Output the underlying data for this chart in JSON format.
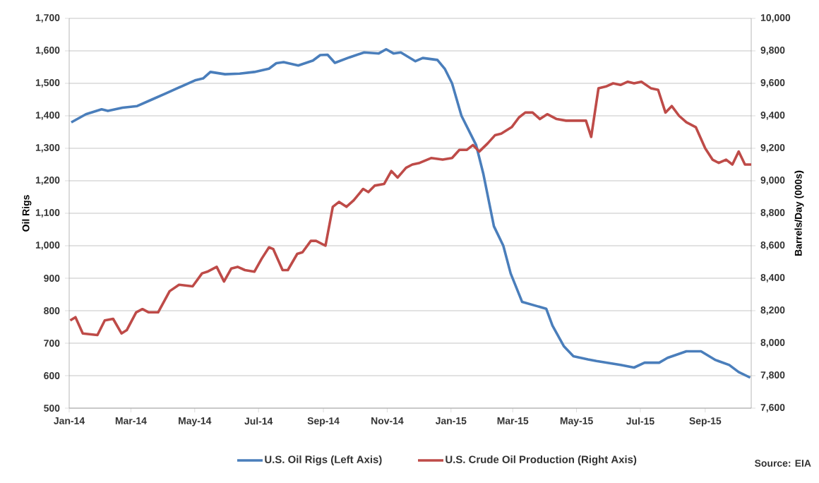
{
  "chart_data": {
    "type": "line",
    "ylabel": "Oil Rigs",
    "y2label": "Barrels/Day (000s)",
    "grid": "y",
    "legend": "bottom",
    "xlim": [
      "2014-01-01",
      "2015-10-15"
    ],
    "xticks": [
      {
        "value": "2014-01-01",
        "label": "Jan-14"
      },
      {
        "value": "2014-03-01",
        "label": "Mar-14"
      },
      {
        "value": "2014-05-01",
        "label": "May-14"
      },
      {
        "value": "2014-07-01",
        "label": "Jul-14"
      },
      {
        "value": "2014-09-01",
        "label": "Sep-14"
      },
      {
        "value": "2014-11-01",
        "label": "Nov-14"
      },
      {
        "value": "2015-01-01",
        "label": "Jan-15"
      },
      {
        "value": "2015-03-01",
        "label": "Mar-15"
      },
      {
        "value": "2015-05-01",
        "label": "May-15"
      },
      {
        "value": "2015-07-01",
        "label": "Jul-15"
      },
      {
        "value": "2015-09-01",
        "label": "Sep-15"
      }
    ],
    "ylim": [
      500,
      1700
    ],
    "yticks": [
      500,
      600,
      700,
      800,
      900,
      {
        "value": 1000,
        "label": "1,000"
      },
      {
        "value": 1100,
        "label": "1,100"
      },
      {
        "value": 1200,
        "label": "1,200"
      },
      {
        "value": 1300,
        "label": "1,300"
      },
      {
        "value": 1400,
        "label": "1,400"
      },
      {
        "value": 1500,
        "label": "1,500"
      },
      {
        "value": 1600,
        "label": "1,600"
      },
      {
        "value": 1700,
        "label": "1,700"
      }
    ],
    "y2lim": [
      7600,
      10000
    ],
    "y2ticks": [
      {
        "value": 7600,
        "label": "7,600"
      },
      {
        "value": 7800,
        "label": "7,800"
      },
      {
        "value": 8000,
        "label": "8,000"
      },
      {
        "value": 8200,
        "label": "8,200"
      },
      {
        "value": 8400,
        "label": "8,400"
      },
      {
        "value": 8600,
        "label": "8,600"
      },
      {
        "value": 8800,
        "label": "8,800"
      },
      {
        "value": 9000,
        "label": "9,000"
      },
      {
        "value": 9200,
        "label": "9,200"
      },
      {
        "value": 9400,
        "label": "9,400"
      },
      {
        "value": 9600,
        "label": "9,600"
      },
      {
        "value": 9800,
        "label": "9,800"
      },
      {
        "value": 10000,
        "label": "10,000"
      }
    ],
    "series": [
      {
        "name": "U.S. Oil Rigs (Left Axis)",
        "color": "#4a7ebb",
        "x": [
          "2014-01-03",
          "2014-01-17",
          "2014-02-01",
          "2014-02-07",
          "2014-02-21",
          "2014-03-07",
          "2014-03-21",
          "2014-04-04",
          "2014-04-18",
          "2014-05-02",
          "2014-05-09",
          "2014-05-16",
          "2014-05-30",
          "2014-06-13",
          "2014-06-27",
          "2014-07-11",
          "2014-07-18",
          "2014-07-25",
          "2014-08-08",
          "2014-08-22",
          "2014-08-29",
          "2014-09-05",
          "2014-09-12",
          "2014-09-26",
          "2014-10-10",
          "2014-10-24",
          "2014-10-31",
          "2014-11-07",
          "2014-11-14",
          "2014-11-28",
          "2014-12-05",
          "2014-12-19",
          "2014-12-26",
          "2015-01-02",
          "2015-01-11",
          "2015-01-25",
          "2015-02-01",
          "2015-02-11",
          "2015-02-20",
          "2015-02-27",
          "2015-03-10",
          "2015-04-02",
          "2015-04-08",
          "2015-04-19",
          "2015-04-28",
          "2015-05-12",
          "2015-05-20",
          "2015-06-12",
          "2015-06-25",
          "2015-07-05",
          "2015-07-19",
          "2015-07-27",
          "2015-08-14",
          "2015-08-28",
          "2015-09-11",
          "2015-09-24",
          "2015-10-03",
          "2015-10-14"
        ],
        "values": [
          1380,
          1405,
          1420,
          1415,
          1425,
          1430,
          1450,
          1470,
          1490,
          1510,
          1515,
          1535,
          1528,
          1530,
          1535,
          1545,
          1562,
          1565,
          1555,
          1570,
          1587,
          1588,
          1563,
          1580,
          1595,
          1592,
          1605,
          1592,
          1595,
          1568,
          1578,
          1572,
          1545,
          1500,
          1400,
          1310,
          1220,
          1060,
          1000,
          915,
          827,
          806,
          754,
          690,
          660,
          650,
          645,
          633,
          625,
          640,
          640,
          655,
          675,
          675,
          648,
          633,
          611,
          594
        ]
      },
      {
        "name": "U.S. Crude Oil Production (Right Axis)",
        "color": "#be4b48",
        "axis": "y2",
        "x": [
          "2014-01-02",
          "2014-01-07",
          "2014-01-14",
          "2014-01-28",
          "2014-02-04",
          "2014-02-12",
          "2014-02-20",
          "2014-02-25",
          "2014-03-06",
          "2014-03-12",
          "2014-03-18",
          "2014-03-27",
          "2014-04-07",
          "2014-04-16",
          "2014-04-29",
          "2014-05-08",
          "2014-05-13",
          "2014-05-22",
          "2014-05-29",
          "2014-06-05",
          "2014-06-11",
          "2014-06-18",
          "2014-06-27",
          "2014-07-04",
          "2014-07-11",
          "2014-07-15",
          "2014-07-24",
          "2014-07-29",
          "2014-08-07",
          "2014-08-12",
          "2014-08-20",
          "2014-08-25",
          "2014-09-03",
          "2014-09-10",
          "2014-09-16",
          "2014-09-23",
          "2014-09-30",
          "2014-10-09",
          "2014-10-14",
          "2014-10-20",
          "2014-10-29",
          "2014-11-05",
          "2014-11-11",
          "2014-11-19",
          "2014-11-25",
          "2014-12-02",
          "2014-12-13",
          "2014-12-24",
          "2015-01-02",
          "2015-01-09",
          "2015-01-16",
          "2015-01-22",
          "2015-01-28",
          "2015-02-05",
          "2015-02-12",
          "2015-02-18",
          "2015-02-28",
          "2015-03-07",
          "2015-03-13",
          "2015-03-20",
          "2015-03-27",
          "2015-04-03",
          "2015-04-12",
          "2015-04-21",
          "2015-04-28",
          "2015-05-07",
          "2015-05-10",
          "2015-05-15",
          "2015-05-22",
          "2015-05-29",
          "2015-06-05",
          "2015-06-12",
          "2015-06-19",
          "2015-06-25",
          "2015-07-02",
          "2015-07-11",
          "2015-07-18",
          "2015-07-25",
          "2015-07-31",
          "2015-08-07",
          "2015-08-14",
          "2015-08-23",
          "2015-09-01",
          "2015-09-08",
          "2015-09-14",
          "2015-09-21",
          "2015-09-27",
          "2015-10-03",
          "2015-10-09",
          "2015-10-15"
        ],
        "values": [
          8140,
          8160,
          8060,
          8050,
          8140,
          8150,
          8060,
          8080,
          8190,
          8210,
          8190,
          8190,
          8320,
          8360,
          8350,
          8430,
          8440,
          8470,
          8380,
          8460,
          8470,
          8450,
          8440,
          8520,
          8590,
          8580,
          8450,
          8450,
          8550,
          8560,
          8630,
          8630,
          8600,
          8840,
          8870,
          8840,
          8880,
          8950,
          8930,
          8970,
          8980,
          9060,
          9020,
          9080,
          9100,
          9110,
          9140,
          9130,
          9140,
          9190,
          9190,
          9220,
          9180,
          9230,
          9280,
          9290,
          9330,
          9390,
          9420,
          9420,
          9380,
          9410,
          9380,
          9370,
          9370,
          9370,
          9370,
          9270,
          9570,
          9580,
          9600,
          9590,
          9610,
          9600,
          9610,
          9570,
          9560,
          9420,
          9460,
          9400,
          9360,
          9330,
          9200,
          9130,
          9110,
          9130,
          9100,
          9180,
          9100,
          9100
        ]
      }
    ],
    "annotations": [
      "Source: EIA"
    ]
  }
}
